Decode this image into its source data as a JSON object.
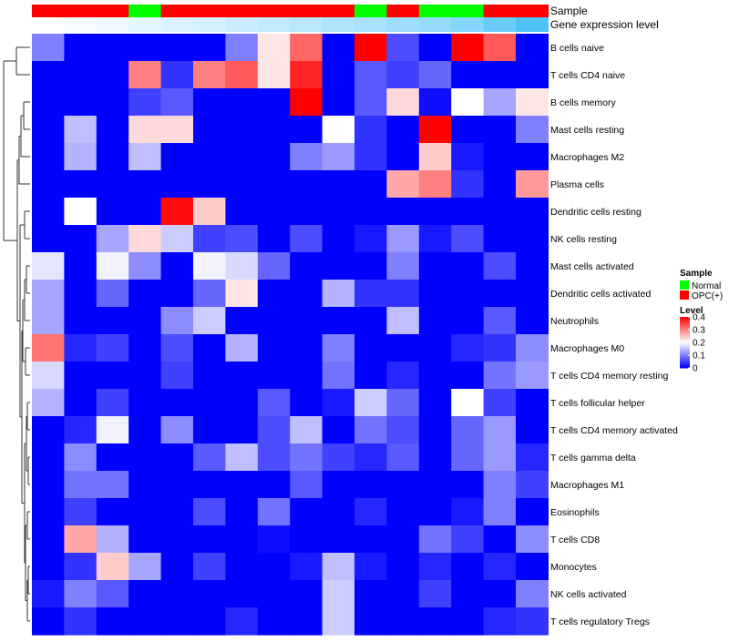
{
  "chart_data": {
    "type": "heatmap",
    "annotations": {
      "sample_label": "Sample",
      "gene_label": "Gene expression level",
      "sample_values": [
        "OPC(+)",
        "OPC(+)",
        "OPC(+)",
        "Normal",
        "OPC(+)",
        "OPC(+)",
        "OPC(+)",
        "OPC(+)",
        "OPC(+)",
        "OPC(+)",
        "Normal",
        "OPC(+)",
        "Normal",
        "Normal",
        "OPC(+)",
        "OPC(+)"
      ],
      "gene_expression": [
        0.0,
        0.05,
        0.1,
        0.15,
        0.2,
        0.25,
        0.3,
        0.35,
        0.4,
        0.45,
        0.5,
        0.55,
        0.6,
        0.7,
        0.85,
        1.0
      ]
    },
    "rows": [
      "B cells naive",
      "T cells CD4 naive",
      "B cells memory",
      "Mast cells resting",
      "Macrophages M2",
      "Plasma cells",
      "Dendritic cells resting",
      "NK cells resting",
      "Mast cells activated",
      "Dendritic cells activated",
      "Neutrophils",
      "Macrophages M0",
      "T cells CD4 memory resting",
      "T cells follicular helper",
      "T cells CD4 memory activated",
      "T cells gamma delta",
      "Macrophages M1",
      "Eosinophils",
      "T cells CD8",
      "Monocytes",
      "NK cells activated",
      "T cells regulatory  Tregs"
    ],
    "values": [
      [
        0.1,
        0,
        0,
        0,
        0,
        0,
        0.1,
        0.22,
        0.32,
        0,
        0.4,
        0.06,
        0,
        0.4,
        0.33,
        0
      ],
      [
        0,
        0,
        0,
        0.3,
        0.04,
        0.3,
        0.33,
        0.22,
        0.37,
        0,
        0.07,
        0.05,
        0.08,
        0,
        0,
        0
      ],
      [
        0,
        0,
        0,
        0.05,
        0.07,
        0,
        0,
        0,
        0.4,
        0,
        0.07,
        0.23,
        0.01,
        0.2,
        0.13,
        0.22
      ],
      [
        0,
        0.15,
        0,
        0.23,
        0.23,
        0,
        0,
        0,
        0,
        0.2,
        0.04,
        0,
        0.4,
        0,
        0,
        0.1
      ],
      [
        0,
        0.14,
        0,
        0.15,
        0,
        0,
        0,
        0,
        0.1,
        0.12,
        0.04,
        0,
        0.24,
        0.02,
        0,
        0
      ],
      [
        0,
        0,
        0,
        0,
        0,
        0,
        0,
        0,
        0,
        0,
        0,
        0.27,
        0.3,
        0.04,
        0,
        0.28
      ],
      [
        0,
        0.2,
        0,
        0,
        0.39,
        0.24,
        0,
        0,
        0,
        0,
        0,
        0,
        0,
        0,
        0,
        0
      ],
      [
        0,
        0,
        0.13,
        0.23,
        0.16,
        0.05,
        0.06,
        0,
        0.06,
        0,
        0.02,
        0.12,
        0.02,
        0.06,
        0,
        0
      ],
      [
        0.18,
        0,
        0.19,
        0.11,
        0,
        0.19,
        0.17,
        0.08,
        0,
        0,
        0,
        0.1,
        0,
        0,
        0.06,
        0
      ],
      [
        0.13,
        0,
        0.08,
        0,
        0,
        0.08,
        0.22,
        0,
        0,
        0.14,
        0.04,
        0.04,
        0,
        0,
        0,
        0
      ],
      [
        0.13,
        0,
        0,
        0,
        0.11,
        0.16,
        0,
        0,
        0,
        0,
        0,
        0.15,
        0,
        0,
        0.07,
        0
      ],
      [
        0.31,
        0.03,
        0.05,
        0,
        0.06,
        0,
        0.14,
        0,
        0,
        0.1,
        0,
        0,
        0,
        0.03,
        0.04,
        0.11
      ],
      [
        0.17,
        0,
        0,
        0,
        0.05,
        0,
        0,
        0,
        0,
        0.09,
        0,
        0.03,
        0,
        0,
        0.09,
        0.12
      ],
      [
        0.14,
        0,
        0.05,
        0,
        0,
        0,
        0,
        0.07,
        0,
        0.02,
        0.16,
        0.08,
        0,
        0.2,
        0.05,
        0
      ],
      [
        0,
        0.03,
        0.19,
        0,
        0.11,
        0,
        0,
        0.06,
        0.15,
        0,
        0.09,
        0.06,
        0,
        0.08,
        0.12,
        0
      ],
      [
        0,
        0.11,
        0,
        0,
        0,
        0.07,
        0.15,
        0.06,
        0.09,
        0.05,
        0.03,
        0.07,
        0,
        0.08,
        0.12,
        0.03
      ],
      [
        0,
        0.09,
        0.09,
        0,
        0,
        0,
        0,
        0,
        0.07,
        0,
        0,
        0,
        0,
        0,
        0.1,
        0.05
      ],
      [
        0,
        0.05,
        0,
        0,
        0,
        0.06,
        0,
        0.09,
        0,
        0,
        0.03,
        0,
        0,
        0.02,
        0.1,
        0
      ],
      [
        0,
        0.27,
        0.14,
        0,
        0,
        0,
        0,
        0.01,
        0,
        0,
        0,
        0,
        0.09,
        0.05,
        0,
        0.11
      ],
      [
        0,
        0.04,
        0.24,
        0.13,
        0,
        0.05,
        0,
        0,
        0.02,
        0.15,
        0.02,
        0,
        0.03,
        0,
        0.03,
        0
      ],
      [
        0.02,
        0.1,
        0.07,
        0,
        0,
        0,
        0,
        0,
        0,
        0.16,
        0,
        0,
        0.05,
        0,
        0,
        0.1
      ],
      [
        0,
        0.04,
        0,
        0,
        0,
        0,
        0.03,
        0,
        0,
        0.16,
        0,
        0,
        0,
        0,
        0.03,
        0.04
      ]
    ],
    "legend": {
      "sample_title": "Sample",
      "sample_entries": [
        {
          "label": "Normal",
          "color": "#00ff00"
        },
        {
          "label": "OPC(+)",
          "color": "#ff0000"
        }
      ],
      "level_title": "Level",
      "level_ticks": [
        "0.4",
        "0.3",
        "0.2",
        "0.1",
        "0"
      ],
      "level_tick_values": [
        0.4,
        0.3,
        0.2,
        0.1,
        0
      ],
      "level_range": [
        0,
        0.4
      ]
    },
    "colors": {
      "low": "#0000ff",
      "mid": "#ffffff",
      "high": "#ff0000",
      "normal": "#00ff00",
      "opc": "#ff0000",
      "gene_low": "#ffffff",
      "gene_high": "#4fc3f7"
    }
  }
}
